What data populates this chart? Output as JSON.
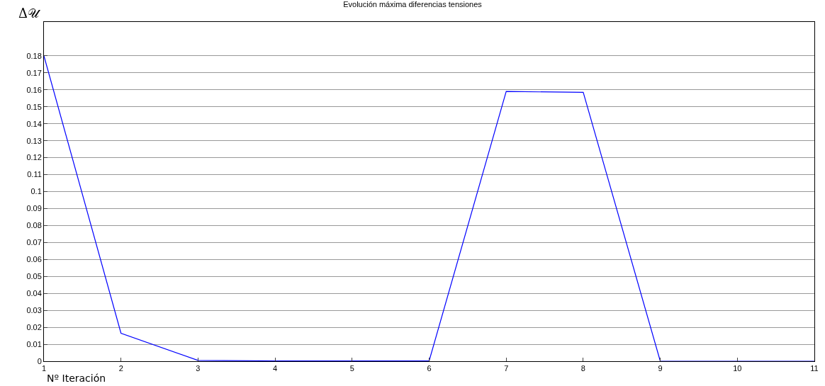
{
  "chart_data": {
    "type": "line",
    "title": "Evolución máxima diferencias tensiones",
    "xlabel": "Nº Iteración",
    "ylabel": "Δ𝒰",
    "x": [
      1,
      2,
      3,
      4,
      5,
      6,
      7,
      8,
      9,
      10,
      11
    ],
    "series": [
      {
        "color": "#0000ff",
        "values": [
          0.18,
          0.0165,
          0.0005,
          0.0002,
          0.0002,
          0.0002,
          0.159,
          0.1585,
          0,
          0,
          0
        ]
      }
    ],
    "xlim": [
      1,
      11
    ],
    "xticks": [
      1,
      2,
      3,
      4,
      5,
      6,
      7,
      8,
      9,
      10,
      11
    ],
    "ylim": [
      0,
      0.2
    ],
    "yticks": [
      0,
      0.01,
      0.02,
      0.03,
      0.04,
      0.05,
      0.06,
      0.07,
      0.08,
      0.09,
      0.1,
      0.11,
      0.12,
      0.13,
      0.14,
      0.15,
      0.16,
      0.17,
      0.18
    ],
    "grid": "y",
    "marker": "none",
    "line_style": "solid"
  }
}
